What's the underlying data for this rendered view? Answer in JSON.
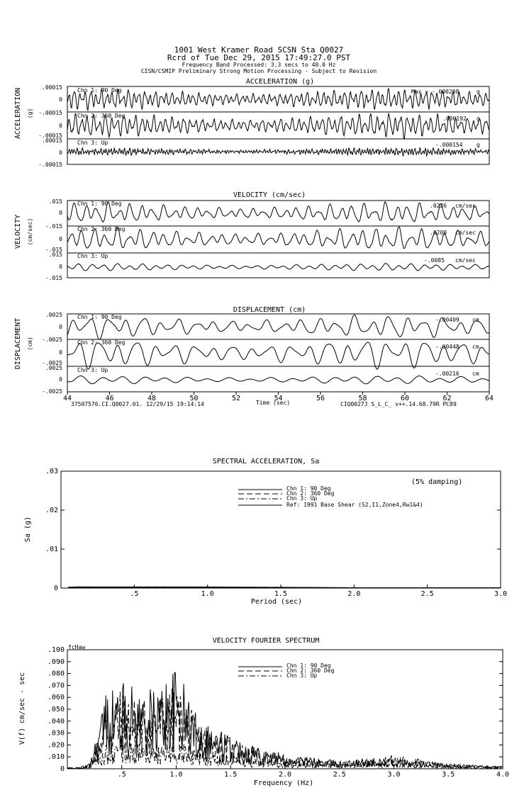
{
  "header": {
    "line1": "1001 West Kramer Road    SCSN Sta Q0027",
    "line2": "Rcrd of Tue Dec 29, 2015 17:49:27.0 PST",
    "line3": "Frequency Band Processed: 3.3 secs to 40.0 Hz",
    "line4": "CISN/CSMIP Preliminary Strong Motion Processing - Subject to Revision"
  },
  "timeseries": {
    "x_ticks": [
      "44",
      "46",
      "48",
      "50",
      "52",
      "54",
      "56",
      "58",
      "60",
      "62",
      "64"
    ],
    "x_label": "Time (sec)",
    "footer_left": "37507576.CI.Q0027.01. 12/29/15 19:14:14",
    "footer_right": "CIQ0027J  S_L_C_  v++.14.68.79R PC89",
    "groups": [
      {
        "title": "ACCELERATION (g)",
        "side_label": "ACCELERATION",
        "unit_label": "(g)",
        "channels": [
          {
            "name": "Chn 1: 90 Deg",
            "peak": "Max = -.000208",
            "unit": "g",
            "top_tick": ".00015",
            "mid_tick": "0",
            "bottom_tick": "-.00015"
          },
          {
            "name": "Chn 2: 360 Deg",
            "peak": ".000192",
            "unit": "g",
            "top_tick": ".00015",
            "mid_tick": "0",
            "bottom_tick": "-.00015"
          },
          {
            "name": "Chn 3: Up",
            "peak": "-.000154",
            "unit": "g",
            "top_tick": ".00015",
            "mid_tick": "0",
            "bottom_tick": "-.00015"
          }
        ]
      },
      {
        "title": "VELOCITY (cm/sec)",
        "side_label": "VELOCITY",
        "unit_label": "(cm/sec)",
        "channels": [
          {
            "name": "Chn 1: 90 Deg",
            "peak": ".0226",
            "unit": "cm/sec",
            "top_tick": ".015",
            "mid_tick": "0",
            "bottom_tick": "-.015"
          },
          {
            "name": "Chn 2: 360 Deg",
            "peak": ".0209",
            "unit": "cm/sec",
            "top_tick": ".015",
            "mid_tick": "0",
            "bottom_tick": "-.015"
          },
          {
            "name": "Chn 3: Up",
            "peak": "-.0085",
            "unit": "cm/sec",
            "top_tick": ".015",
            "mid_tick": "0",
            "bottom_tick": "-.015"
          }
        ]
      },
      {
        "title": "DISPLACEMENT (cm)",
        "side_label": "DISPLACEMENT",
        "unit_label": "(cm)",
        "channels": [
          {
            "name": "Chn 1: 90 Deg",
            "peak": "-.00409",
            "unit": "cm",
            "top_tick": ".0025",
            "mid_tick": "0",
            "bottom_tick": "-.0025"
          },
          {
            "name": "Chn 2: 360 Deg",
            "peak": "-.00448",
            "unit": "cm",
            "top_tick": ".0025",
            "mid_tick": "0",
            "bottom_tick": "-.0025"
          },
          {
            "name": "Chn 3: Up",
            "peak": "-.00216",
            "unit": "cm",
            "top_tick": ".0025",
            "mid_tick": "0",
            "bottom_tick": "-.0025"
          }
        ]
      }
    ]
  },
  "spectral": {
    "title": "SPECTRAL ACCELERATION, Sa",
    "damping": "(5% damping)",
    "ylabel": "Sa (g)",
    "xlabel": "Period (sec)",
    "y_ticks": [
      ".03",
      ".02",
      ".01",
      "0"
    ],
    "x_ticks": [
      "0",
      ".5",
      "1.0",
      "1.5",
      "2.0",
      "2.5",
      "3.0"
    ],
    "legend": [
      "Chn 1: 90 Deg",
      "Chn 2: 360 Deg",
      "Chn 3: Up",
      "Ref: 1991 Base Shear (S2,I1,Zone4,Rw1&4)"
    ]
  },
  "fourier": {
    "title": "VELOCITY FOURIER SPECTRUM",
    "corner_label": "fcHaw",
    "ylabel_line1": "V(f)   cm/sec - sec",
    "xlabel": "Frequency (Hz)",
    "y_ticks": [
      ".100",
      ".090",
      ".080",
      ".070",
      ".060",
      ".050",
      ".040",
      ".030",
      ".020",
      ".010",
      "0"
    ],
    "x_ticks": [
      "0",
      ".5",
      "1.0",
      "1.5",
      "2.0",
      "2.5",
      "3.0",
      "3.5",
      "4.0"
    ],
    "legend": [
      "Chn 1: 90 Deg",
      "Chn 2: 360 Deg",
      "Chn 3: Up"
    ]
  },
  "chart_data": [
    {
      "type": "line",
      "title": "ACCELERATION (g)",
      "xlabel": "Time (sec)",
      "xlim": [
        44,
        64
      ],
      "ylim": [
        -0.00015,
        0.00015
      ],
      "series": [
        {
          "name": "Chn 1: 90 Deg",
          "peak": -0.000208
        },
        {
          "name": "Chn 2: 360 Deg",
          "peak": 0.000192
        },
        {
          "name": "Chn 3: Up",
          "peak": -0.000154
        }
      ]
    },
    {
      "type": "line",
      "title": "VELOCITY (cm/sec)",
      "xlabel": "Time (sec)",
      "xlim": [
        44,
        64
      ],
      "ylim": [
        -0.015,
        0.015
      ],
      "series": [
        {
          "name": "Chn 1: 90 Deg",
          "peak": 0.0226
        },
        {
          "name": "Chn 2: 360 Deg",
          "peak": 0.0209
        },
        {
          "name": "Chn 3: Up",
          "peak": -0.0085
        }
      ]
    },
    {
      "type": "line",
      "title": "DISPLACEMENT (cm)",
      "xlabel": "Time (sec)",
      "xlim": [
        44,
        64
      ],
      "ylim": [
        -0.0025,
        0.0025
      ],
      "series": [
        {
          "name": "Chn 1: 90 Deg",
          "peak": -0.00409
        },
        {
          "name": "Chn 2: 360 Deg",
          "peak": -0.00448
        },
        {
          "name": "Chn 3: Up",
          "peak": -0.00216
        }
      ]
    },
    {
      "type": "line",
      "title": "SPECTRAL ACCELERATION, Sa",
      "xlabel": "Period (sec)",
      "ylabel": "Sa (g)",
      "xlim": [
        0,
        3.0
      ],
      "ylim": [
        0,
        0.03
      ],
      "x": [
        0.05,
        0.1,
        0.2,
        0.3,
        0.5,
        0.7,
        1.0,
        1.5,
        2.0,
        2.5,
        3.0
      ],
      "series": [
        {
          "name": "Chn 1: 90 Deg",
          "values": [
            0.0002,
            0.0003,
            0.0003,
            0.0003,
            0.0003,
            0.0003,
            0.0003,
            0.0002,
            0.0001,
            0.0001,
            0.0001
          ]
        },
        {
          "name": "Chn 2: 360 Deg",
          "values": [
            0.0002,
            0.0003,
            0.0003,
            0.0002,
            0.0003,
            0.0003,
            0.0002,
            0.0002,
            0.0001,
            0.0001,
            0.0001
          ]
        },
        {
          "name": "Chn 3: Up",
          "values": [
            0.0002,
            0.0002,
            0.0002,
            0.0001,
            0.0001,
            0.0001,
            0.0001,
            0.0001,
            0.0,
            0.0,
            0.0
          ]
        },
        {
          "name": "Ref: 1991 Base Shear (S2,I1,Zone4,Rw1&4)",
          "values": [
            0.0001,
            0.0001,
            0.0001,
            0.0001,
            0.0001,
            0.0001,
            0.0001,
            0.0001,
            0.0001,
            0.0001,
            0.0001
          ]
        }
      ]
    },
    {
      "type": "line",
      "title": "VELOCITY FOURIER SPECTRUM",
      "xlabel": "Frequency (Hz)",
      "ylabel": "V(f)   cm/sec - sec",
      "xlim": [
        0,
        4.0
      ],
      "ylim": [
        0,
        0.1
      ],
      "x": [
        0.1,
        0.2,
        0.3,
        0.35,
        0.5,
        0.6,
        0.8,
        1.0,
        1.2,
        1.5,
        2.0,
        2.5,
        3.0,
        3.5,
        4.0
      ],
      "series": [
        {
          "name": "Chn 1: 90 Deg",
          "values": [
            0.001,
            0.004,
            0.045,
            0.066,
            0.074,
            0.069,
            0.067,
            0.086,
            0.045,
            0.029,
            0.012,
            0.007,
            0.009,
            0.004,
            0.002
          ]
        },
        {
          "name": "Chn 2: 360 Deg",
          "values": [
            0.001,
            0.003,
            0.035,
            0.055,
            0.068,
            0.06,
            0.062,
            0.07,
            0.04,
            0.025,
            0.009,
            0.006,
            0.012,
            0.004,
            0.002
          ]
        },
        {
          "name": "Chn 3: Up",
          "values": [
            0.0,
            0.002,
            0.015,
            0.02,
            0.025,
            0.022,
            0.02,
            0.022,
            0.015,
            0.01,
            0.005,
            0.004,
            0.005,
            0.002,
            0.001
          ]
        }
      ]
    }
  ]
}
